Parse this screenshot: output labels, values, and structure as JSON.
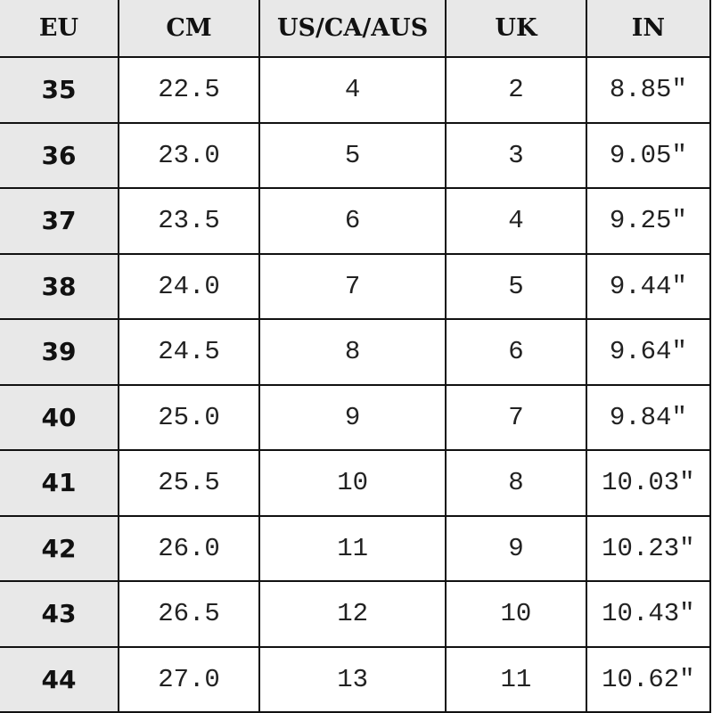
{
  "table": {
    "headers": [
      "EU",
      "CM",
      "US/CA/AUS",
      "UK",
      "IN"
    ],
    "rows": [
      [
        "35",
        "22.5",
        "4",
        "2",
        "8.85″"
      ],
      [
        "36",
        "23.0",
        "5",
        "3",
        "9.05″"
      ],
      [
        "37",
        "23.5",
        "6",
        "4",
        "9.25″"
      ],
      [
        "38",
        "24.0",
        "7",
        "5",
        "9.44″"
      ],
      [
        "39",
        "24.5",
        "8",
        "6",
        "9.64″"
      ],
      [
        "40",
        "25.0",
        "9",
        "7",
        "9.84″"
      ],
      [
        "41",
        "25.5",
        "10",
        "8",
        "10.03″"
      ],
      [
        "42",
        "26.0",
        "11",
        "9",
        "10.23″"
      ],
      [
        "43",
        "26.5",
        "12",
        "10",
        "10.43″"
      ],
      [
        "44",
        "27.0",
        "13",
        "11",
        "10.62″"
      ]
    ],
    "header_bg": "#e8e8e8",
    "border_color": "#111111"
  }
}
